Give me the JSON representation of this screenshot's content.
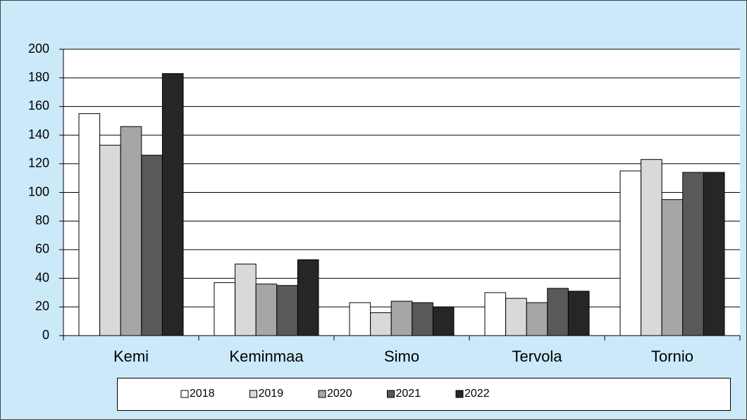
{
  "chart_data": {
    "type": "bar",
    "categories": [
      "Kemi",
      "Keminmaa",
      "Simo",
      "Tervola",
      "Tornio"
    ],
    "series": [
      {
        "name": "2018",
        "color": "#ffffff",
        "values": [
          155,
          37,
          23,
          30,
          115
        ]
      },
      {
        "name": "2019",
        "color": "#d9d9d9",
        "values": [
          133,
          50,
          16,
          26,
          123
        ]
      },
      {
        "name": "2020",
        "color": "#a6a6a6",
        "values": [
          146,
          36,
          24,
          23,
          95
        ]
      },
      {
        "name": "2021",
        "color": "#595959",
        "values": [
          126,
          35,
          23,
          33,
          114
        ]
      },
      {
        "name": "2022",
        "color": "#262626",
        "values": [
          183,
          53,
          20,
          31,
          114
        ]
      }
    ],
    "ylim": [
      0,
      200
    ],
    "yticks": [
      0,
      20,
      40,
      60,
      80,
      100,
      120,
      140,
      160,
      180,
      200
    ],
    "grid": true,
    "legend": "bottom"
  }
}
